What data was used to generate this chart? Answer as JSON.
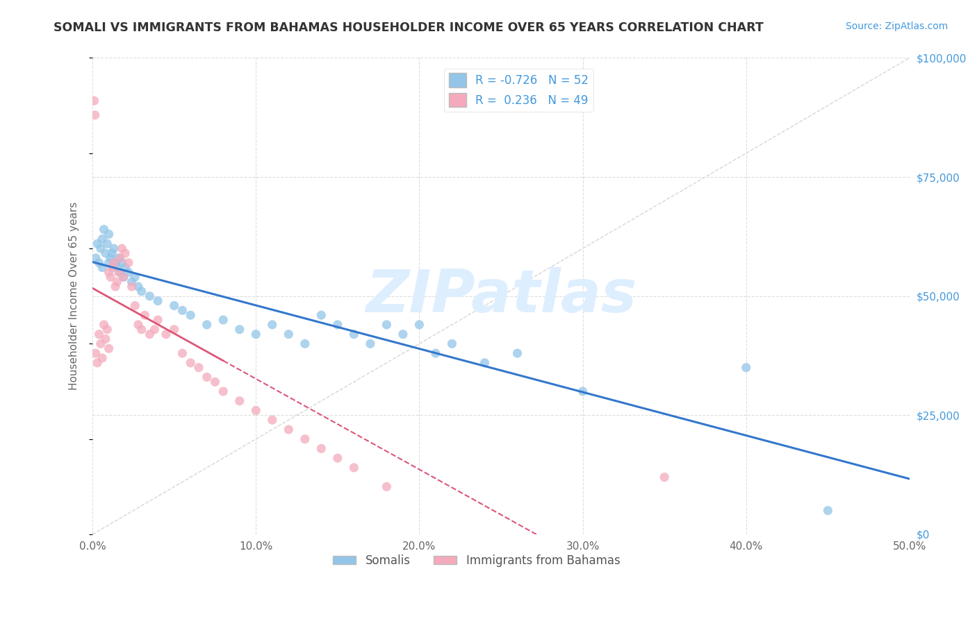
{
  "title": "SOMALI VS IMMIGRANTS FROM BAHAMAS HOUSEHOLDER INCOME OVER 65 YEARS CORRELATION CHART",
  "source": "Source: ZipAtlas.com",
  "xlabel_values": [
    0.0,
    10.0,
    20.0,
    30.0,
    40.0,
    50.0
  ],
  "ylabel_values": [
    0,
    25000,
    50000,
    75000,
    100000
  ],
  "xmin": 0.0,
  "xmax": 50.0,
  "ymin": 0,
  "ymax": 100000,
  "ylabel": "Householder Income Over 65 years",
  "legend_label_somali": "Somalis",
  "legend_label_bahamas": "Immigrants from Bahamas",
  "R_somali": -0.726,
  "N_somali": 52,
  "R_bahamas": 0.236,
  "N_bahamas": 49,
  "somali_color": "#92C5E8",
  "bahamas_color": "#F4AABB",
  "somali_line_color": "#3377CC",
  "bahamas_line_color": "#DD5577",
  "ref_line_color": "#CCCCCC",
  "title_color": "#333333",
  "axis_label_color": "#666666",
  "tick_color_right": "#4499DD",
  "watermark_color": "#DDEEFF",
  "watermark_text": "ZIPatlas",
  "background_color": "#FFFFFF",
  "somali_scatter_x": [
    0.2,
    0.3,
    0.4,
    0.5,
    0.6,
    0.6,
    0.7,
    0.8,
    0.9,
    1.0,
    1.0,
    1.1,
    1.2,
    1.3,
    1.4,
    1.5,
    1.6,
    1.7,
    1.8,
    1.9,
    2.0,
    2.2,
    2.4,
    2.6,
    2.8,
    3.0,
    3.5,
    4.0,
    5.0,
    5.5,
    6.0,
    7.0,
    8.0,
    9.0,
    10.0,
    11.0,
    12.0,
    13.0,
    14.0,
    15.0,
    16.0,
    17.0,
    18.0,
    19.0,
    20.0,
    21.0,
    22.0,
    24.0,
    26.0,
    30.0,
    40.0,
    45.0
  ],
  "somali_scatter_y": [
    58000,
    61000,
    57000,
    60000,
    62000,
    56000,
    64000,
    59000,
    61000,
    63000,
    57000,
    58000,
    59000,
    60000,
    57000,
    56000,
    58000,
    55000,
    57000,
    54000,
    56000,
    55000,
    53000,
    54000,
    52000,
    51000,
    50000,
    49000,
    48000,
    47000,
    46000,
    44000,
    45000,
    43000,
    42000,
    44000,
    42000,
    40000,
    46000,
    44000,
    42000,
    40000,
    44000,
    42000,
    44000,
    38000,
    40000,
    36000,
    38000,
    30000,
    35000,
    5000
  ],
  "bahamas_scatter_x": [
    0.1,
    0.15,
    0.2,
    0.3,
    0.4,
    0.5,
    0.6,
    0.7,
    0.8,
    0.9,
    1.0,
    1.0,
    1.1,
    1.2,
    1.3,
    1.4,
    1.5,
    1.6,
    1.7,
    1.8,
    1.9,
    2.0,
    2.2,
    2.4,
    2.6,
    2.8,
    3.0,
    3.2,
    3.5,
    3.8,
    4.0,
    4.5,
    5.0,
    5.5,
    6.0,
    6.5,
    7.0,
    7.5,
    8.0,
    9.0,
    10.0,
    11.0,
    12.0,
    13.0,
    14.0,
    15.0,
    16.0,
    18.0,
    35.0
  ],
  "bahamas_scatter_y": [
    91000,
    88000,
    38000,
    36000,
    42000,
    40000,
    37000,
    44000,
    41000,
    43000,
    39000,
    55000,
    54000,
    56000,
    57000,
    52000,
    53000,
    55000,
    58000,
    60000,
    54000,
    59000,
    57000,
    52000,
    48000,
    44000,
    43000,
    46000,
    42000,
    43000,
    45000,
    42000,
    43000,
    38000,
    36000,
    35000,
    33000,
    32000,
    30000,
    28000,
    26000,
    24000,
    22000,
    20000,
    18000,
    16000,
    14000,
    10000,
    12000
  ]
}
